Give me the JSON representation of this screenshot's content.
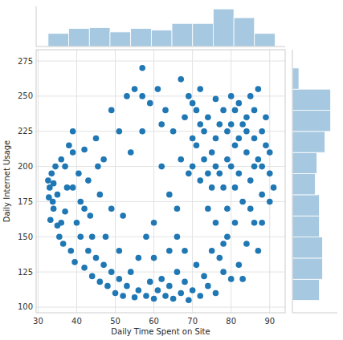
{
  "chart_data": [
    {
      "type": "scatter",
      "x_label": "Daily Time Spent on Site",
      "y_label": "Daily Internet Usage",
      "color": "#1f77b4",
      "marker": "circle",
      "grid": true,
      "xlim": [
        29.5,
        94
      ],
      "ylim": [
        96,
        283
      ],
      "xticks": [
        30,
        40,
        50,
        60,
        70,
        80,
        90
      ],
      "yticks": [
        100,
        125,
        150,
        175,
        200,
        225,
        250,
        275
      ],
      "x": [
        32.6,
        33,
        32.8,
        33.5,
        34,
        33.2,
        34.5,
        35,
        33.8,
        36,
        35.5,
        37,
        36.5,
        38,
        37.5,
        38.5,
        39,
        40,
        39.5,
        41,
        40.5,
        42,
        42,
        43,
        44,
        43.5,
        45,
        46,
        45.5,
        47,
        48,
        47.5,
        49,
        50,
        49,
        51,
        52,
        51,
        53,
        54,
        55,
        54,
        56,
        57,
        56,
        58,
        59,
        57,
        60,
        61,
        60,
        62,
        63,
        62,
        64,
        65,
        64,
        66,
        67,
        66,
        68,
        69,
        68,
        70,
        71,
        70,
        72,
        73,
        72,
        74,
        75,
        74,
        76,
        77,
        76,
        78,
        79,
        78,
        80,
        81,
        80,
        82,
        83,
        82,
        84,
        85,
        84,
        86,
        87,
        86,
        88,
        89,
        88,
        90,
        91,
        89,
        87,
        85,
        83,
        81,
        79,
        77,
        75,
        73,
        71,
        69,
        67,
        70,
        72,
        74,
        76,
        78,
        80,
        82,
        84,
        86,
        88,
        79,
        81,
        77,
        75,
        73,
        71,
        69,
        67,
        65,
        63,
        61,
        59,
        57,
        55,
        53,
        51,
        49,
        47,
        45,
        43,
        41,
        39,
        37,
        35,
        64,
        58,
        52,
        46,
        66,
        62,
        78,
        85,
        90,
        87,
        83,
        76,
        68,
        60,
        44,
        36,
        34,
        39,
        42,
        84,
        80,
        86,
        82,
        79,
        76,
        74,
        72,
        70,
        88,
        90,
        81
      ],
      "y": [
        190,
        185,
        178,
        195,
        170,
        162,
        200,
        158,
        175,
        205,
        150,
        168,
        145,
        215,
        185,
        140,
        225,
        160,
        132,
        150,
        195,
        128,
        212,
        140,
        122,
        165,
        135,
        118,
        200,
        130,
        115,
        150,
        125,
        110,
        170,
        120,
        108,
        140,
        115,
        125,
        107,
        210,
        112,
        270,
        135,
        108,
        118,
        250,
        106,
        112,
        160,
        120,
        108,
        230,
        115,
        106,
        180,
        125,
        110,
        150,
        118,
        105,
        235,
        112,
        130,
        200,
        108,
        122,
        255,
        115,
        140,
        170,
        110,
        135,
        220,
        125,
        150,
        240,
        120,
        160,
        200,
        130,
        175,
        245,
        145,
        190,
        225,
        160,
        205,
        240,
        180,
        215,
        160,
        195,
        185,
        235,
        255,
        250,
        230,
        215,
        205,
        195,
        210,
        225,
        240,
        250,
        262,
        220,
        190,
        235,
        248,
        185,
        230,
        195,
        210,
        220,
        200,
        170,
        240,
        230,
        185,
        205,
        215,
        195,
        205,
        225,
        240,
        255,
        245,
        225,
        255,
        250,
        225,
        240,
        205,
        220,
        190,
        175,
        210,
        200,
        180,
        140,
        150,
        165,
        180,
        170,
        200,
        145,
        170,
        175,
        140,
        120,
        160,
        140,
        135,
        150,
        160,
        188,
        185,
        170,
        235,
        250,
        200,
        220,
        225,
        200,
        195,
        230,
        245,
        225,
        210,
        185
      ]
    },
    {
      "type": "histogram",
      "color": "#a6c8e0",
      "tick_labels": false,
      "xlim": [
        29.5,
        94
      ],
      "ylim": [
        0,
        160
      ],
      "bins": [
        32.6,
        37.95,
        43.29,
        48.64,
        53.98,
        59.33,
        64.67,
        70.02,
        75.36,
        80.71,
        86.05,
        91.4
      ],
      "counts": [
        52,
        72,
        75,
        58,
        72,
        66,
        92,
        92,
        150,
        115,
        52
      ]
    },
    {
      "type": "histogram",
      "orientation": "horizontal",
      "color": "#a6c8e0",
      "tick_labels": false,
      "xlim": [
        0,
        160
      ],
      "ylim": [
        96,
        283
      ],
      "bins": [
        104.78,
        119.8,
        134.82,
        149.83,
        164.85,
        179.87,
        194.89,
        209.91,
        224.92,
        239.94,
        254.96,
        269.96
      ],
      "counts": [
        96,
        107,
        107,
        96,
        96,
        81,
        87,
        116,
        136,
        136,
        23
      ]
    }
  ]
}
